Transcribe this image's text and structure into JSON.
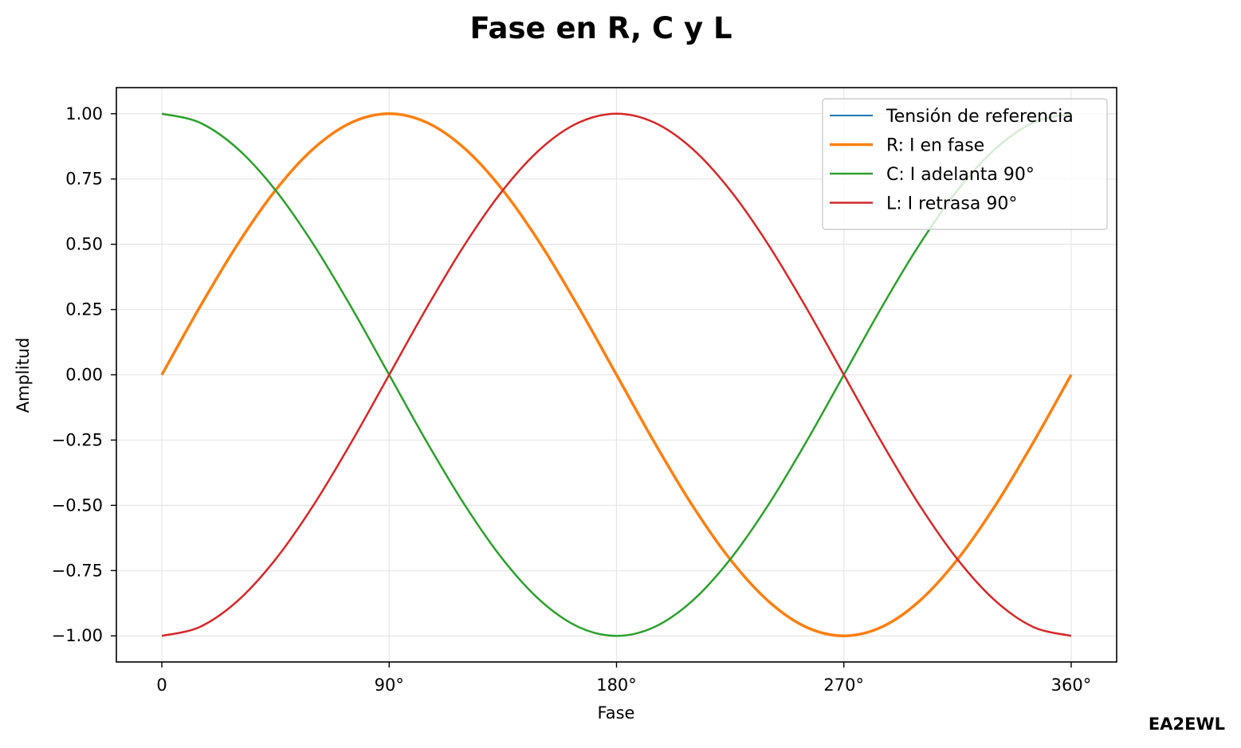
{
  "chart_data": {
    "type": "line",
    "title": "Fase en R, C y L",
    "xlabel": "Fase",
    "ylabel": "Amplitud",
    "xlim": [
      -18,
      378
    ],
    "ylim": [
      -1.1,
      1.1
    ],
    "x_ticks": [
      {
        "value": 0,
        "label": "0"
      },
      {
        "value": 90,
        "label": "90°"
      },
      {
        "value": 180,
        "label": "180°"
      },
      {
        "value": 270,
        "label": "270°"
      },
      {
        "value": 360,
        "label": "360°"
      }
    ],
    "y_ticks": [
      {
        "value": 1.0,
        "label": "1.00"
      },
      {
        "value": 0.75,
        "label": "0.75"
      },
      {
        "value": 0.5,
        "label": "0.50"
      },
      {
        "value": 0.25,
        "label": "0.25"
      },
      {
        "value": 0.0,
        "label": "0.00"
      },
      {
        "value": -0.25,
        "label": "−0.25"
      },
      {
        "value": -0.5,
        "label": "−0.50"
      },
      {
        "value": -0.75,
        "label": "−0.75"
      },
      {
        "value": -1.0,
        "label": "−1.00"
      }
    ],
    "grid": true,
    "legend_position": "top-right",
    "x": [
      0,
      15,
      30,
      45,
      60,
      75,
      90,
      105,
      120,
      135,
      150,
      165,
      180,
      195,
      210,
      225,
      240,
      255,
      270,
      285,
      300,
      315,
      330,
      345,
      360
    ],
    "series": [
      {
        "name": "Tensión de referencia",
        "color": "#1f77b4",
        "width": 2,
        "values": [
          0,
          0.259,
          0.5,
          0.707,
          0.866,
          0.966,
          1,
          0.966,
          0.866,
          0.707,
          0.5,
          0.259,
          0,
          -0.259,
          -0.5,
          -0.707,
          -0.866,
          -0.966,
          -1,
          -0.966,
          -0.866,
          -0.707,
          -0.5,
          -0.259,
          0
        ]
      },
      {
        "name": "R: I en fase",
        "color": "#ff7f0e",
        "width": 3.5,
        "values": [
          0,
          0.259,
          0.5,
          0.707,
          0.866,
          0.966,
          1,
          0.966,
          0.866,
          0.707,
          0.5,
          0.259,
          0,
          -0.259,
          -0.5,
          -0.707,
          -0.866,
          -0.966,
          -1,
          -0.966,
          -0.866,
          -0.707,
          -0.5,
          -0.259,
          0
        ]
      },
      {
        "name": "C: I adelanta 90°",
        "color": "#2ca02c",
        "width": 2.5,
        "values": [
          1,
          0.966,
          0.866,
          0.707,
          0.5,
          0.259,
          0,
          -0.259,
          -0.5,
          -0.707,
          -0.866,
          -0.966,
          -1,
          -0.966,
          -0.866,
          -0.707,
          -0.5,
          -0.259,
          0,
          0.259,
          0.5,
          0.707,
          0.866,
          0.966,
          1
        ]
      },
      {
        "name": "L: I retrasa 90°",
        "color": "#d62728",
        "width": 2.5,
        "values": [
          -1,
          -0.966,
          -0.866,
          -0.707,
          -0.5,
          -0.259,
          0,
          0.259,
          0.5,
          0.707,
          0.866,
          0.966,
          1,
          0.966,
          0.866,
          0.707,
          0.5,
          0.259,
          0,
          -0.259,
          -0.5,
          -0.707,
          -0.866,
          -0.966,
          -1
        ]
      }
    ]
  },
  "watermark": "EA2EWL"
}
